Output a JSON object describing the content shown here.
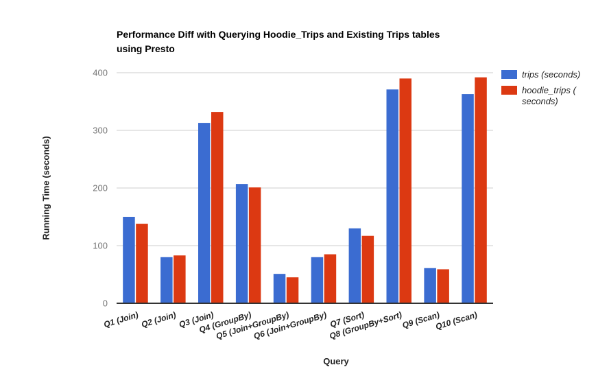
{
  "title": {
    "line1": "Performance Diff with Querying Hoodie_Trips and Existing Trips tables",
    "line2": "using Presto"
  },
  "legend": {
    "items": [
      {
        "color": "#3B6CD1",
        "lines": [
          "trips (seconds)",
          ""
        ]
      },
      {
        "color": "#DC3912",
        "lines": [
          "hoodie_trips (",
          "seconds)"
        ]
      }
    ]
  },
  "chart_data": {
    "type": "bar",
    "title": "Performance Diff with Querying Hoodie_Trips and Existing Trips tables using Presto",
    "xlabel": "Query",
    "ylabel": "Running Time (seconds)",
    "categories": [
      "Q1 (Join)",
      "Q2 (Join)",
      "Q3 (Join)",
      "Q4 (GroupBy)",
      "Q5 (Join+GroupBy)",
      "Q6 (Join+GroupBy)",
      "Q7 (Sort)",
      "Q8 (GroupBy+Sort)",
      "Q9 (Scan)",
      "Q10 (Scan)"
    ],
    "series": [
      {
        "name": "trips (seconds)",
        "color": "#3B6CD1",
        "values": [
          150,
          80,
          313,
          207,
          51,
          80,
          130,
          371,
          61,
          363
        ]
      },
      {
        "name": "hoodie_trips (seconds)",
        "color": "#DC3912",
        "values": [
          138,
          83,
          332,
          201,
          45,
          85,
          117,
          390,
          59,
          392
        ]
      }
    ],
    "ylim": [
      0,
      400
    ],
    "yticks": [
      0,
      100,
      200,
      300,
      400
    ],
    "grid": true,
    "legend_position": "right",
    "colors": {
      "gridline": "#cccccc",
      "axis_line": "#333333",
      "ytick_label": "#757575",
      "xtick_label": "#222222"
    }
  }
}
